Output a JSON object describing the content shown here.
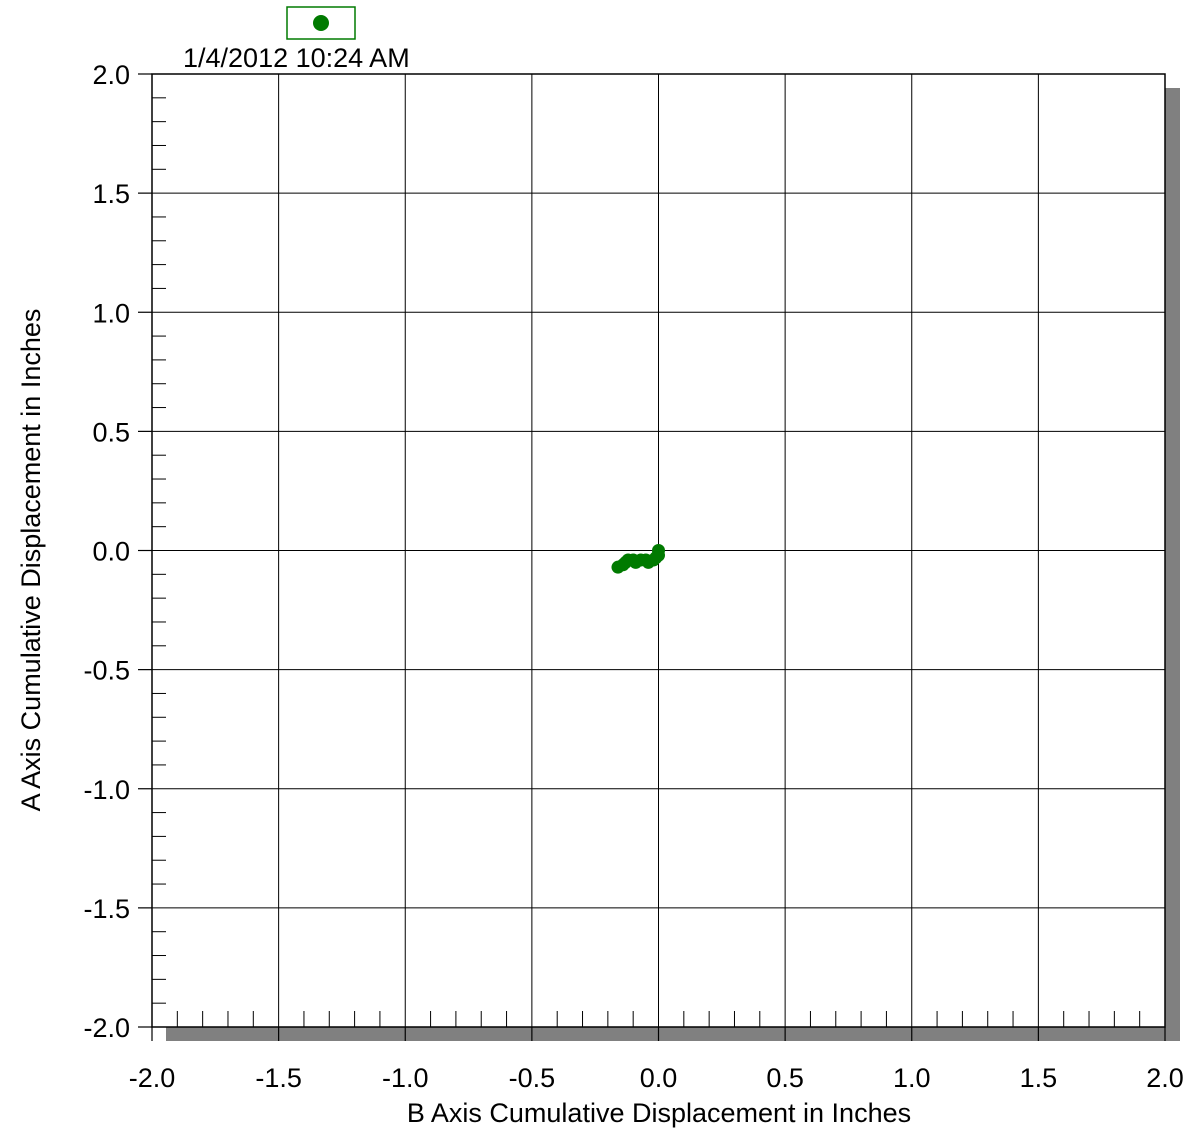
{
  "chart_data": {
    "type": "scatter",
    "title": "",
    "xlabel": "B Axis Cumulative Displacement in Inches",
    "ylabel": "A Axis Cumulative Displacement in Inches",
    "xlim": [
      -2.0,
      2.0
    ],
    "ylim": [
      -2.0,
      2.0
    ],
    "x_ticks": [
      "-2.0",
      "-1.5",
      "-1.0",
      "-0.5",
      "0.0",
      "0.5",
      "1.0",
      "1.5",
      "2.0"
    ],
    "y_ticks": [
      "2.0",
      "1.5",
      "1.0",
      "0.5",
      "0.0",
      "-0.5",
      "-1.0",
      "-1.5",
      "-2.0"
    ],
    "grid": true,
    "legend": {
      "position": "top-left",
      "entries": [
        "1/4/2012 10:24 AM"
      ]
    },
    "series": [
      {
        "name": "1/4/2012 10:24 AM",
        "color": "#007a00",
        "marker": "circle",
        "x": [
          0.0,
          0.0,
          -0.01,
          -0.02,
          -0.04,
          -0.05,
          -0.07,
          -0.09,
          -0.1,
          -0.12,
          -0.13,
          -0.14,
          -0.16
        ],
        "y": [
          0.0,
          -0.02,
          -0.03,
          -0.04,
          -0.05,
          -0.04,
          -0.04,
          -0.05,
          -0.04,
          -0.04,
          -0.05,
          -0.06,
          -0.07
        ]
      }
    ]
  }
}
